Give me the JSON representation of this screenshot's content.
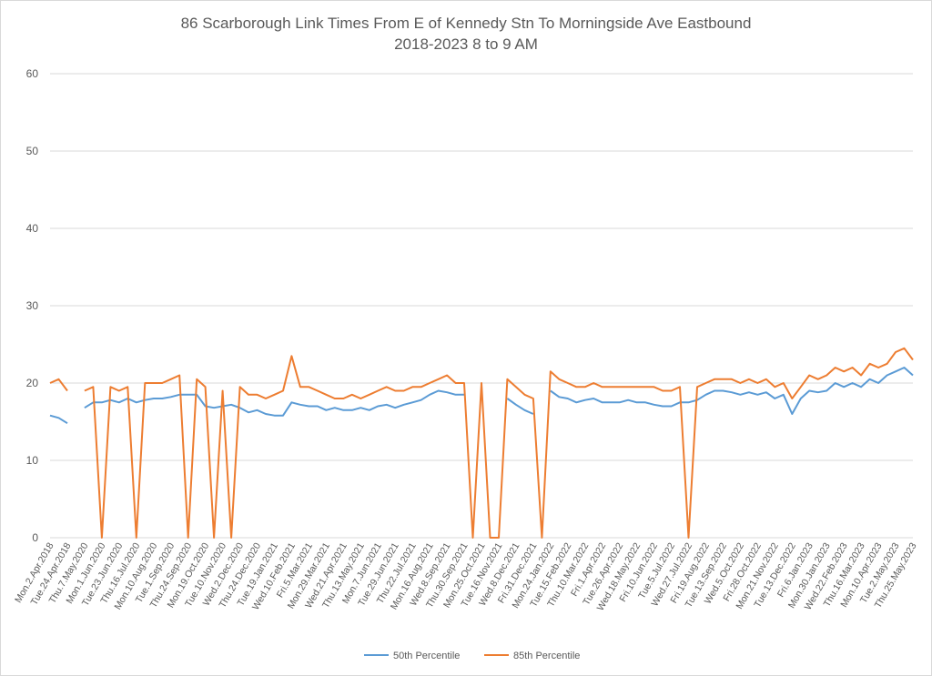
{
  "chart_data": {
    "type": "line",
    "title": "86 Scarborough Link Times From E of Kennedy Stn To Morningside Ave Eastbound",
    "subtitle": "2018-2023 8 to 9 AM",
    "xlabel": "",
    "ylabel": "",
    "ylim": [
      0,
      60
    ],
    "yticks": [
      0,
      10,
      20,
      30,
      40,
      50,
      60
    ],
    "grid": true,
    "legend": "bottom",
    "label_interval": 2,
    "tick_labels": [
      "Mon.2.Apr.2018",
      "Tue.24.Apr.2018",
      "Thu.7.May.2020",
      "Mon.1.Jun.2020",
      "Tue.23.Jun.2020",
      "Thu.16.Jul.2020",
      "Mon.10.Aug.2020",
      "Tue.1.Sep.2020",
      "Thu.24.Sep.2020",
      "Mon.19.Oct.2020",
      "Tue.10.Nov.2020",
      "Wed.2.Dec.2020",
      "Thu.24.Dec.2020",
      "Tue.19.Jan.2021",
      "Wed.10.Feb.2021",
      "Fri.5.Mar.2021",
      "Mon.29.Mar.2021",
      "Wed.21.Apr.2021",
      "Thu.13.May.2021",
      "Mon.7.Jun.2021",
      "Tue.29.Jun.2021",
      "Thu.22.Jul.2021",
      "Mon.16.Aug.2021",
      "Wed.8.Sep.2021",
      "Thu.30.Sep.2021",
      "Mon.25.Oct.2021",
      "Tue.16.Nov.2021",
      "Wed.8.Dec.2021",
      "Fri.31.Dec.2021",
      "Mon.24.Jan.2022",
      "Tue.15.Feb.2022",
      "Thu.10.Mar.2022",
      "Fri.1.Apr.2022",
      "Tue.26.Apr.2022",
      "Wed.18.May.2022",
      "Fri.10.Jun.2022",
      "Tue.5.Jul.2022",
      "Wed.27.Jul.2022",
      "Fri.19.Aug.2022",
      "Tue.13.Sep.2022",
      "Wed.5.Oct.2022",
      "Fri.28.Oct.2022",
      "Mon.21.Nov.2022",
      "Tue.13.Dec.2022",
      "Fri.6.Jan.2023",
      "Mon.30.Jan.2023",
      "Wed.22.Feb.2023",
      "Thu.16.Mar.2023",
      "Mon.10.Apr.2023",
      "Tue.2.May.2023",
      "Thu.25.May.2023"
    ],
    "series": [
      {
        "name": "50th Percentile",
        "color": "#5B9BD5",
        "values": [
          15.8,
          15.5,
          14.8,
          null,
          16.8,
          17.5,
          17.5,
          17.8,
          17.5,
          18,
          17.5,
          17.8,
          18,
          18,
          18.2,
          18.5,
          18.5,
          18.5,
          17,
          16.8,
          17,
          17.2,
          16.8,
          16.2,
          16.5,
          16,
          15.8,
          15.8,
          17.5,
          17.2,
          17,
          17,
          16.5,
          16.8,
          16.5,
          16.5,
          16.8,
          16.5,
          17,
          17.2,
          16.8,
          17.2,
          17.5,
          17.8,
          18.5,
          19,
          18.8,
          18.5,
          18.5,
          null,
          18.5,
          null,
          null,
          18,
          17.2,
          16.5,
          16,
          null,
          19,
          18.2,
          18,
          17.5,
          17.8,
          18,
          17.5,
          17.5,
          17.5,
          17.8,
          17.5,
          17.5,
          17.2,
          17,
          17,
          17.5,
          17.5,
          17.8,
          18.5,
          19,
          19,
          18.8,
          18.5,
          18.8,
          18.5,
          18.8,
          18,
          18.5,
          16,
          18,
          19,
          18.8,
          19,
          20,
          19.5,
          20,
          19.5,
          20.5,
          20,
          21,
          21.5,
          22,
          21
        ]
      },
      {
        "name": "85th Percentile",
        "color": "#ED7D31",
        "values": [
          20,
          20.5,
          19,
          null,
          19,
          19.5,
          0,
          19.5,
          19,
          19.5,
          0,
          20,
          20,
          20,
          20.5,
          21,
          0,
          20.5,
          19.5,
          0,
          19,
          0,
          19.5,
          18.5,
          18.5,
          18,
          18.5,
          19,
          23.5,
          19.5,
          19.5,
          19,
          18.5,
          18,
          18,
          18.5,
          18,
          18.5,
          19,
          19.5,
          19,
          19,
          19.5,
          19.5,
          20,
          20.5,
          21,
          20,
          20,
          0,
          20,
          0,
          0,
          20.5,
          19.5,
          18.5,
          18,
          0,
          21.5,
          20.5,
          20,
          19.5,
          19.5,
          20,
          19.5,
          19.5,
          19.5,
          19.5,
          19.5,
          19.5,
          19.5,
          19,
          19,
          19.5,
          0,
          19.5,
          20,
          20.5,
          20.5,
          20.5,
          20,
          20.5,
          20,
          20.5,
          19.5,
          20,
          18,
          19.5,
          21,
          20.5,
          21,
          22,
          21.5,
          22,
          21,
          22.5,
          22,
          22.5,
          24,
          24.5,
          23
        ]
      }
    ]
  }
}
